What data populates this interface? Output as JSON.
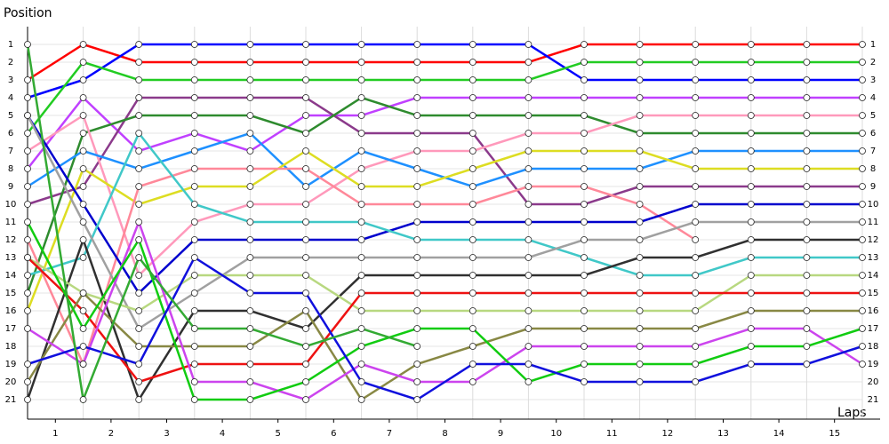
{
  "chart_data": {
    "type": "line",
    "y_label": "Position",
    "x_label": "Laps",
    "x": [
      0,
      1,
      2,
      3,
      4,
      5,
      6,
      7,
      8,
      9,
      10,
      11,
      12,
      13,
      14,
      15
    ],
    "xlim": [
      0,
      15
    ],
    "xticks": [
      {
        "value": 0.5,
        "label": "1"
      },
      {
        "value": 1.5,
        "label": "2"
      },
      {
        "value": 2.5,
        "label": "3"
      },
      {
        "value": 3.5,
        "label": "4"
      },
      {
        "value": 4.5,
        "label": "5"
      },
      {
        "value": 5.5,
        "label": "6"
      },
      {
        "value": 6.5,
        "label": "7"
      },
      {
        "value": 7.5,
        "label": "8"
      },
      {
        "value": 8.5,
        "label": "9"
      },
      {
        "value": 9.5,
        "label": "10"
      },
      {
        "value": 10.5,
        "label": "11"
      },
      {
        "value": 11.5,
        "label": "12"
      },
      {
        "value": 12.5,
        "label": "13"
      },
      {
        "value": 13.5,
        "label": "14"
      },
      {
        "value": 14.5,
        "label": "15"
      }
    ],
    "ylim": [
      0,
      22
    ],
    "y_inverted": true,
    "yticks": [
      1,
      2,
      3,
      4,
      5,
      6,
      7,
      8,
      9,
      10,
      11,
      12,
      13,
      14,
      15,
      16,
      17,
      18,
      19,
      20,
      21
    ],
    "grid": true,
    "series": [
      {
        "color": "#ff0000",
        "values": [
          3,
          1,
          2,
          2,
          2,
          2,
          2,
          2,
          2,
          2,
          1,
          1,
          1,
          1,
          1,
          1
        ]
      },
      {
        "color": "#0000ff",
        "values": [
          4,
          3,
          1,
          1,
          1,
          1,
          1,
          1,
          1,
          1,
          3,
          3,
          3,
          3,
          3,
          3
        ]
      },
      {
        "color": "#22cc22",
        "values": [
          6,
          2,
          3,
          3,
          3,
          3,
          3,
          3,
          3,
          3,
          2,
          2,
          2,
          2,
          2,
          2
        ]
      },
      {
        "color": "#c040ff",
        "values": [
          8,
          4,
          7,
          6,
          7,
          5,
          5,
          4,
          4,
          4,
          4,
          4,
          4,
          4,
          4,
          4
        ]
      },
      {
        "color": "#8b3a8b",
        "values": [
          10,
          9,
          4,
          4,
          4,
          4,
          6,
          6,
          6,
          10,
          10,
          9,
          9,
          9,
          9,
          9
        ]
      },
      {
        "color": "#2e8b2e",
        "values": [
          15,
          6,
          5,
          5,
          5,
          6,
          4,
          5,
          5,
          5,
          5,
          6,
          6,
          6,
          6,
          6
        ]
      },
      {
        "color": "#ff99bb",
        "values": [
          7,
          5,
          14,
          11,
          10,
          10,
          8,
          7,
          7,
          6,
          6,
          5,
          5,
          5,
          5,
          5
        ]
      },
      {
        "color": "#1e90ff",
        "values": [
          9,
          7,
          8,
          7,
          6,
          9,
          7,
          8,
          9,
          8,
          8,
          8,
          7,
          7,
          7,
          7
        ]
      },
      {
        "color": "#dddd22",
        "values": [
          16,
          8,
          10,
          9,
          9,
          7,
          9,
          9,
          8,
          7,
          7,
          7,
          8,
          8,
          8,
          8
        ]
      },
      {
        "color": "#ff8899",
        "values": [
          12,
          19,
          9,
          8,
          8,
          8,
          10,
          10,
          10,
          9,
          9,
          10,
          12,
          null,
          null,
          null
        ]
      },
      {
        "color": "#0000cd",
        "values": [
          5,
          10,
          15,
          12,
          12,
          12,
          12,
          11,
          11,
          11,
          11,
          11,
          10,
          10,
          10,
          10
        ]
      },
      {
        "color": "#40c8c8",
        "values": [
          14,
          13,
          6,
          10,
          11,
          11,
          11,
          12,
          12,
          12,
          13,
          14,
          14,
          13,
          13,
          13
        ]
      },
      {
        "color": "#a0a0a0",
        "values": [
          5,
          11,
          17,
          15,
          13,
          13,
          13,
          13,
          13,
          13,
          12,
          12,
          11,
          11,
          11,
          11
        ]
      },
      {
        "color": "#303030",
        "values": [
          21,
          12,
          21,
          16,
          16,
          17,
          14,
          14,
          14,
          14,
          14,
          13,
          13,
          12,
          12,
          12
        ]
      },
      {
        "color": "#b8d880",
        "values": [
          13,
          15,
          16,
          14,
          14,
          14,
          16,
          16,
          16,
          16,
          16,
          16,
          16,
          14,
          14,
          14
        ]
      },
      {
        "color": "#ee1111",
        "values": [
          13,
          16,
          20,
          19,
          19,
          19,
          15,
          15,
          15,
          15,
          15,
          15,
          15,
          15,
          15,
          15
        ]
      },
      {
        "color": "#888844",
        "values": [
          20,
          15,
          18,
          18,
          18,
          16,
          21,
          19,
          18,
          17,
          17,
          17,
          17,
          16,
          16,
          16
        ]
      },
      {
        "color": "#cc44ee",
        "values": [
          17,
          19,
          11,
          20,
          20,
          21,
          19,
          20,
          20,
          18,
          18,
          18,
          18,
          17,
          17,
          19
        ]
      },
      {
        "color": "#11cc11",
        "values": [
          11,
          17,
          12,
          21,
          21,
          20,
          18,
          17,
          17,
          20,
          19,
          19,
          19,
          18,
          18,
          17
        ]
      },
      {
        "color": "#1010dd",
        "values": [
          19,
          18,
          19,
          13,
          15,
          15,
          20,
          21,
          19,
          19,
          20,
          20,
          20,
          19,
          19,
          18
        ]
      },
      {
        "color": "#33aa33",
        "values": [
          1,
          21,
          13,
          17,
          17,
          18,
          17,
          18,
          null,
          null,
          null,
          null,
          null,
          null,
          null,
          null
        ]
      }
    ]
  }
}
